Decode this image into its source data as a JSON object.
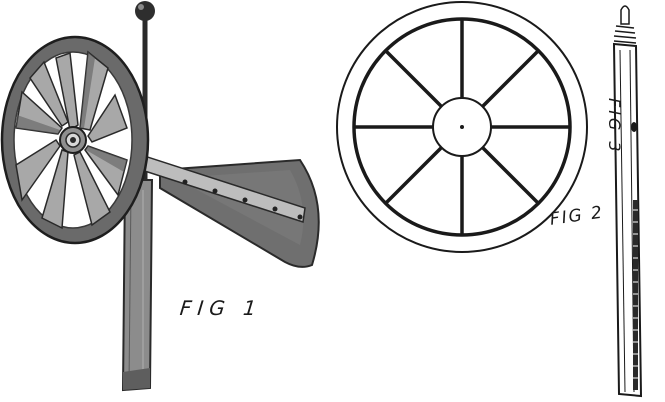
{
  "figures": [
    {
      "id": "fig1",
      "label": "FIG 1",
      "depicts": "wind wheel with vane on pole"
    },
    {
      "id": "fig2",
      "label": "FIG 2",
      "depicts": "eight-spoke wheel"
    },
    {
      "id": "fig3",
      "label": "FIG 3",
      "depicts": "pole"
    }
  ],
  "colors": {
    "ink": "#1a1a1a",
    "dark_tone": "#3d3d3d",
    "mid_tone": "#6f6f6f",
    "light_tone": "#a9a9a9",
    "paper": "#ffffff"
  }
}
